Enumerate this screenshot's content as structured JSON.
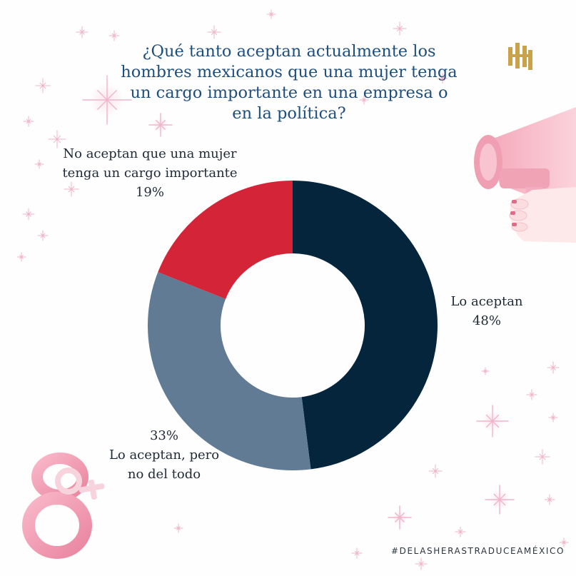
{
  "title_lines": [
    "¿Qué tanto aceptan actualmente los",
    "hombres mexicanos que una mujer tenga",
    "un cargo importante en una empresa o",
    "en la política?"
  ],
  "hashtag": "#DELASHERASTRADUCEAMÉXICO",
  "colors": {
    "title": "#1d4e7e",
    "accept": "#04253b",
    "partial": "#617b95",
    "reject": "#d32537",
    "sparkle": "#f0b4cb"
  },
  "icons": [
    "logo-icon",
    "megaphone-icon",
    "female-symbol-eight-icon",
    "sparkle-icon"
  ],
  "chart_data": {
    "type": "pie",
    "variant": "donut",
    "unit": "%",
    "slices": [
      {
        "key": "accept",
        "lines": [
          "Lo aceptan"
        ],
        "value_label": "48%",
        "value": 48
      },
      {
        "key": "partial",
        "lines": [
          "Lo aceptan, pero",
          "no del todo"
        ],
        "value_label": "33%",
        "value": 33
      },
      {
        "key": "reject",
        "lines": [
          "No aceptan que una mujer",
          "tenga un cargo importante"
        ],
        "value_label": "19%",
        "value": 19
      }
    ]
  }
}
